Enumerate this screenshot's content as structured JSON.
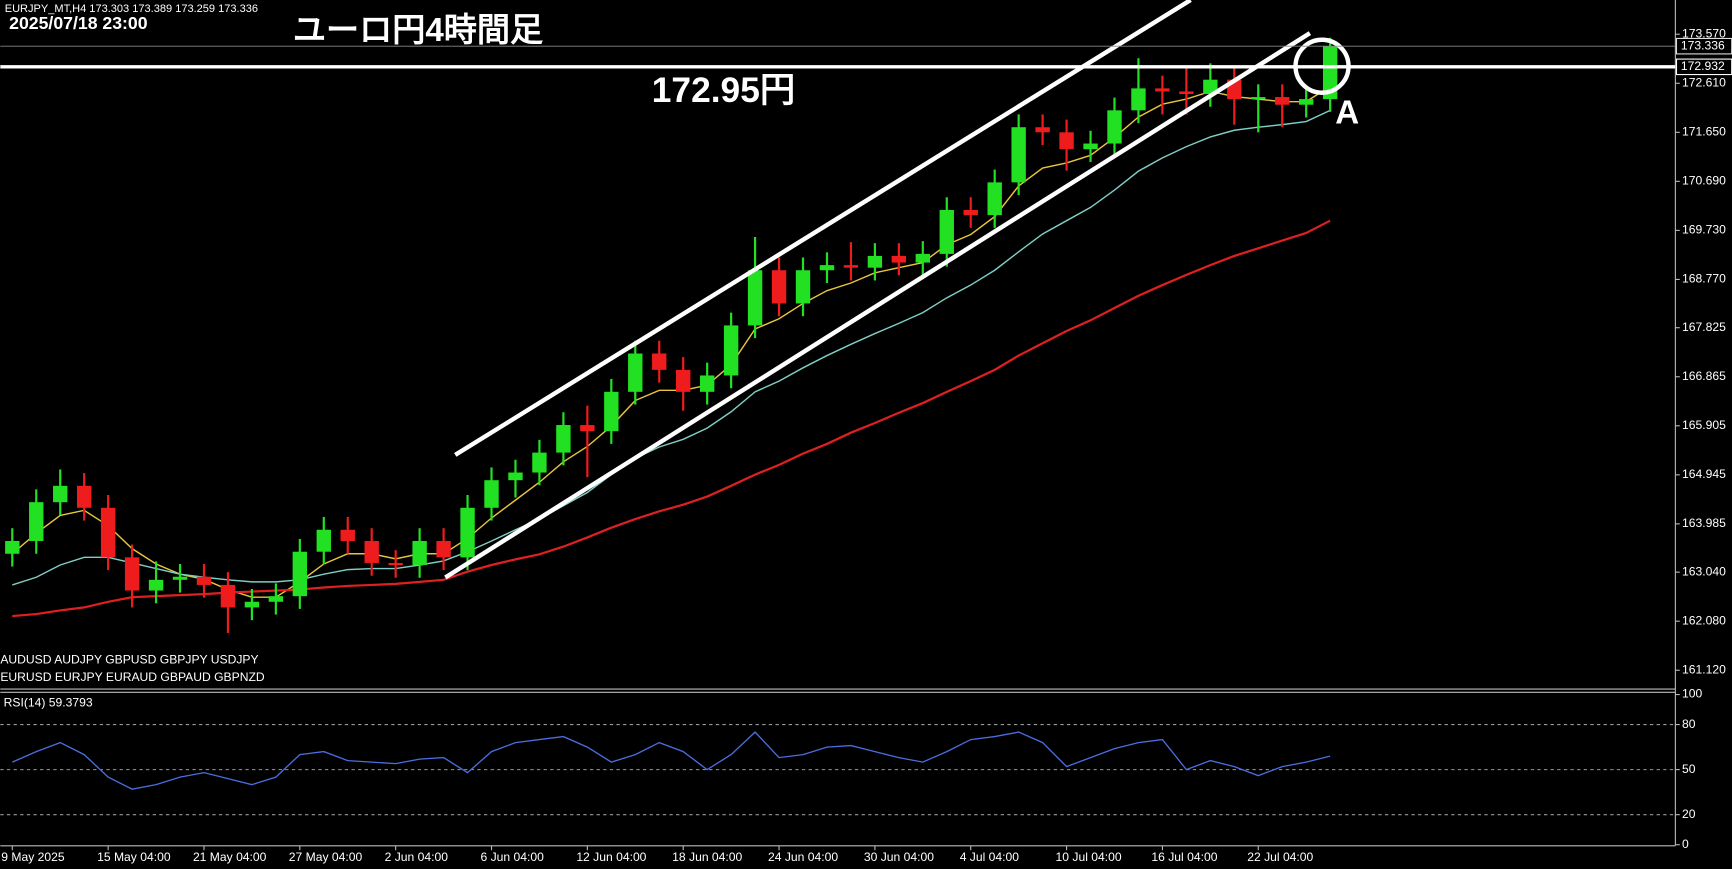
{
  "chart_data": [
    {
      "type": "candlestick",
      "symbol_info": "EURJPY_MT,H4  173.303 173.389 173.259 173.336",
      "datetime": "2025/07/18 23:00",
      "title": "ユーロ円4時間足",
      "annotations": [
        "172.95円",
        "A"
      ],
      "symbols": [
        "AUDUSD  AUDJPY   GBPUSD  GBPJPY   USDJPY",
        "EURUSD  EURJPY   EURAUD  GBPAUD  GBPNZD"
      ],
      "categories": [
        "9 May 2025",
        null,
        null,
        null,
        "15 May 04:00",
        null,
        null,
        null,
        "21 May 04:00",
        null,
        null,
        null,
        "27 May 04:00",
        null,
        null,
        null,
        "2 Jun 04:00",
        null,
        null,
        null,
        "6 Jun 04:00",
        null,
        null,
        null,
        "12 Jun 04:00",
        null,
        null,
        null,
        "18 Jun 04:00",
        null,
        null,
        null,
        "24 Jun 04:00",
        null,
        null,
        null,
        "30 Jun 04:00",
        null,
        null,
        null,
        "4 Jul 04:00",
        null,
        null,
        null,
        "10 Jul 04:00",
        null,
        null,
        null,
        "16 Jul 04:00",
        null,
        null,
        null,
        "22 Jul 04:00",
        null,
        null,
        null
      ],
      "open": [
        163.4,
        163.65,
        164.41,
        164.73,
        164.3,
        163.33,
        162.68,
        162.89,
        162.95,
        162.79,
        162.35,
        162.46,
        162.57,
        163.44,
        163.87,
        163.65,
        163.22,
        163.18,
        163.65,
        163.33,
        164.3,
        164.84,
        164.99,
        165.38,
        165.92,
        165.8,
        166.57,
        167.32,
        167.0,
        166.57,
        166.89,
        167.87,
        168.95,
        168.3,
        168.95,
        169.05,
        169.0,
        169.23,
        169.1,
        169.27,
        170.13,
        170.03,
        170.67,
        171.75,
        171.65,
        171.32,
        171.43,
        172.08,
        172.51,
        172.45,
        172.4,
        172.68,
        172.3,
        172.34,
        172.19,
        172.3
      ],
      "high": [
        163.9,
        164.66,
        165.05,
        164.98,
        164.55,
        163.58,
        163.25,
        163.2,
        163.2,
        163.04,
        162.71,
        162.82,
        163.69,
        164.12,
        164.12,
        163.9,
        163.47,
        163.9,
        163.9,
        164.55,
        165.09,
        165.24,
        165.63,
        166.17,
        166.3,
        166.82,
        167.57,
        167.57,
        167.25,
        167.14,
        168.12,
        169.6,
        169.2,
        169.2,
        169.3,
        169.5,
        169.48,
        169.48,
        169.52,
        170.38,
        170.38,
        170.92,
        172.0,
        172.0,
        171.9,
        171.68,
        172.33,
        173.1,
        172.76,
        172.95,
        173.0,
        172.93,
        172.59,
        172.59,
        172.55,
        173.5
      ],
      "low": [
        163.15,
        163.4,
        164.16,
        164.05,
        163.08,
        162.35,
        162.43,
        162.64,
        162.54,
        161.85,
        162.1,
        162.21,
        162.32,
        163.19,
        163.4,
        162.97,
        162.93,
        162.93,
        163.08,
        163.08,
        164.05,
        164.5,
        164.74,
        165.13,
        164.9,
        165.55,
        166.32,
        166.75,
        166.2,
        166.32,
        166.64,
        167.62,
        168.05,
        168.05,
        168.7,
        168.75,
        168.75,
        168.85,
        168.85,
        169.02,
        169.78,
        169.78,
        170.42,
        171.4,
        170.9,
        171.07,
        171.18,
        171.83,
        172.0,
        172.0,
        172.15,
        171.8,
        171.65,
        171.75,
        171.94,
        172.05
      ],
      "close": [
        163.65,
        164.41,
        164.73,
        164.3,
        163.33,
        162.68,
        162.89,
        162.95,
        162.79,
        162.35,
        162.46,
        162.57,
        163.44,
        163.87,
        163.65,
        163.22,
        163.18,
        163.65,
        163.33,
        164.3,
        164.84,
        164.99,
        165.38,
        165.92,
        165.8,
        166.57,
        167.32,
        167.0,
        166.57,
        166.89,
        167.87,
        168.95,
        168.3,
        168.95,
        169.05,
        169.0,
        169.23,
        169.1,
        169.27,
        170.13,
        170.03,
        170.67,
        171.75,
        171.65,
        171.32,
        171.43,
        172.08,
        172.51,
        172.45,
        172.4,
        172.68,
        172.3,
        172.34,
        172.19,
        172.3,
        173.34
      ],
      "up_color": "#22e022",
      "down_color": "#ee1c1c",
      "overlays": [
        {
          "color": "#e8c53a",
          "values": [
            163.4,
            163.8,
            164.15,
            164.25,
            163.95,
            163.5,
            163.2,
            163.0,
            162.9,
            162.7,
            162.55,
            162.55,
            162.85,
            163.2,
            163.4,
            163.4,
            163.3,
            163.4,
            163.4,
            163.7,
            164.1,
            164.45,
            164.8,
            165.2,
            165.5,
            165.9,
            166.4,
            166.6,
            166.6,
            166.7,
            167.1,
            167.8,
            168.0,
            168.3,
            168.55,
            168.7,
            168.9,
            169.0,
            169.1,
            169.45,
            169.65,
            170.0,
            170.6,
            170.95,
            171.05,
            171.2,
            171.55,
            171.95,
            172.2,
            172.3,
            172.45,
            172.35,
            172.3,
            172.25,
            172.25,
            172.55
          ]
        },
        {
          "color": "#7ecfc5",
          "values": [
            162.79,
            162.94,
            163.18,
            163.33,
            163.33,
            163.22,
            163.11,
            163.0,
            162.94,
            162.89,
            162.85,
            162.85,
            162.89,
            163.0,
            163.09,
            163.11,
            163.11,
            163.18,
            163.26,
            163.44,
            163.65,
            163.87,
            164.08,
            164.34,
            164.6,
            164.95,
            165.27,
            165.49,
            165.64,
            165.86,
            166.18,
            166.57,
            166.78,
            167.04,
            167.28,
            167.5,
            167.71,
            167.91,
            168.12,
            168.41,
            168.66,
            168.95,
            169.31,
            169.66,
            169.92,
            170.18,
            170.52,
            170.89,
            171.15,
            171.37,
            171.56,
            171.69,
            171.75,
            171.8,
            171.86,
            172.08
          ]
        },
        {
          "color": "#e02020",
          "values": [
            162.18,
            162.22,
            162.29,
            162.35,
            162.46,
            162.55,
            162.57,
            162.59,
            162.61,
            162.64,
            162.66,
            162.68,
            162.7,
            162.74,
            162.77,
            162.79,
            162.81,
            162.85,
            162.89,
            163.05,
            163.18,
            163.29,
            163.39,
            163.54,
            163.72,
            163.91,
            164.08,
            164.23,
            164.36,
            164.52,
            164.73,
            164.95,
            165.14,
            165.36,
            165.55,
            165.77,
            165.96,
            166.16,
            166.35,
            166.57,
            166.78,
            167.0,
            167.28,
            167.52,
            167.76,
            167.97,
            168.21,
            168.45,
            168.66,
            168.86,
            169.05,
            169.23,
            169.38,
            169.53,
            169.68,
            169.92
          ]
        }
      ],
      "hline": 172.932,
      "current_price": 173.336,
      "ylim": [
        160.774,
        174.24
      ],
      "yticks": [
        {
          "value": 173.57,
          "label": "173.570"
        },
        {
          "value": 172.61,
          "label": "172.610"
        },
        {
          "value": 171.65,
          "label": "171.650"
        },
        {
          "value": 170.69,
          "label": "170.690"
        },
        {
          "value": 169.73,
          "label": "169.730"
        },
        {
          "value": 168.77,
          "label": "168.770"
        },
        167.825,
        166.865,
        165.905,
        164.945,
        163.985,
        {
          "value": 163.04,
          "label": "163.040"
        },
        {
          "value": 162.08,
          "label": "162.080"
        },
        {
          "value": 161.12,
          "label": "161.120"
        }
      ],
      "grid": false
    },
    {
      "type": "line",
      "title": "RSI(14) 59.3793",
      "color": "#4a6ee0",
      "values": [
        55,
        62,
        68,
        60,
        45,
        37,
        40,
        45,
        48,
        44,
        40,
        45,
        60,
        62,
        56,
        55,
        54,
        57,
        58,
        48,
        62,
        68,
        70,
        72,
        65,
        55,
        60,
        68,
        62,
        50,
        60,
        75,
        58,
        60,
        65,
        66,
        62,
        58,
        55,
        62,
        70,
        72,
        75,
        68,
        52,
        58,
        64,
        68,
        70,
        50,
        56,
        52,
        46,
        52,
        55,
        59
      ],
      "ylim": [
        0,
        100
      ],
      "yticks": [
        100,
        80,
        50,
        20,
        0
      ],
      "levels": [
        80,
        50,
        20
      ]
    }
  ]
}
